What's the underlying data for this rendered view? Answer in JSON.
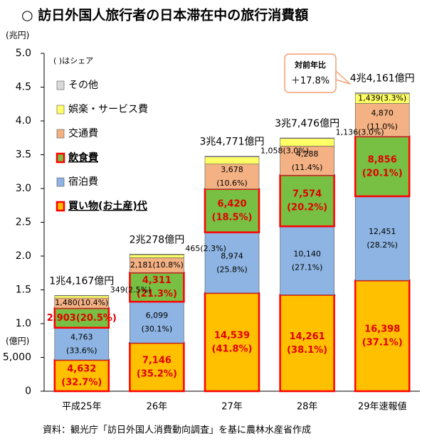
{
  "chart_data": {
    "type": "stacked_bar",
    "title": "○ 訪日外国人旅行者の日本滞在中の旅行消費額",
    "y_unit_top": "(兆円)",
    "y_unit_bottom": "(億円)",
    "legend_title": "( )はシェア",
    "source": "資料：観光庁「訪日外国人消費動向調査」を基に農林水産省作成",
    "annotation": {
      "label": "対前年比",
      "text": "＋17.8%"
    },
    "categories": [
      "平成25年",
      "26年",
      "27年",
      "28年",
      "29年速報値"
    ],
    "ylim": [
      0,
      50000
    ],
    "yticks": [
      0,
      {
        "value": 5000,
        "label": "5,000"
      },
      {
        "value": 10000,
        "label": "1.0"
      },
      {
        "value": 15000,
        "label": "1.5"
      },
      {
        "value": 20000,
        "label": "2.0"
      },
      {
        "value": 25000,
        "label": "2.5"
      },
      {
        "value": 30000,
        "label": "3.0"
      },
      {
        "value": 35000,
        "label": "3.5"
      },
      {
        "value": 40000,
        "label": "4.0"
      },
      {
        "value": 45000,
        "label": "4.5"
      },
      {
        "value": 50000,
        "label": "5.0"
      }
    ],
    "grid": false,
    "series": [
      {
        "name": "買い物(お土産)代",
        "color": "#ffc000",
        "highlight": true,
        "values": [
          4632,
          7146,
          14539,
          14261,
          16398
        ],
        "value_labels": [
          "4,632",
          "7,146",
          "14,539",
          "14,261",
          "16,398"
        ],
        "share_labels": [
          "(32.7%)",
          "(35.2%)",
          "(41.8%)",
          "(38.1%)",
          "(37.1%)"
        ]
      },
      {
        "name": "宿泊費",
        "color": "#8db4e2",
        "highlight": false,
        "values": [
          4763,
          6099,
          8974,
          10140,
          12451
        ],
        "value_labels": [
          "4,763",
          "6,099",
          "8,974",
          "10,140",
          "12,451"
        ],
        "share_labels": [
          "(33.6%)",
          "(30.1%)",
          "(25.8%)",
          "(27.1%)",
          "(28.2%)"
        ]
      },
      {
        "name": "飲食費",
        "color": "#77c043",
        "highlight": true,
        "values": [
          2903,
          4311,
          6420,
          7574,
          8856
        ],
        "value_labels": [
          "2,903",
          "4,311",
          "6,420",
          "7,574",
          "8,856"
        ],
        "share_labels": [
          "(20.5%)",
          "(21.3%)",
          "(18.5%)",
          "(20.2%)",
          "(20.1%)"
        ]
      },
      {
        "name": "交通費",
        "color": "#f4b183",
        "highlight": false,
        "values": [
          1480,
          2181,
          3678,
          4288,
          4870
        ],
        "value_labels": [
          "1,480",
          "2,181",
          "3,678",
          "4,288",
          "4,870"
        ],
        "share_labels": [
          "(10.4%)",
          "(10.8%)",
          "(10.6%)",
          "(11.4%)",
          "(11.0%)"
        ]
      },
      {
        "name": "娯楽・サービス費",
        "color": "#ffff66",
        "highlight": false,
        "values": [
          349,
          465,
          1058,
          1136,
          1439
        ],
        "value_labels": [
          "349",
          "465",
          "1,058",
          "1,136",
          "1,439"
        ],
        "share_labels": [
          "(2.5%)",
          "(2.3%)",
          "(3.0%)",
          "(3.0%)",
          "(3.3%)"
        ]
      },
      {
        "name": "その他",
        "color": "#d9d9d9",
        "highlight": false,
        "values": [
          40,
          76,
          102,
          77,
          147
        ]
      }
    ],
    "totals": {
      "values": [
        14167,
        20278,
        34771,
        37476,
        44161
      ],
      "value_labels": [
        "1兆4,167億円",
        "2兆278億円",
        "3兆4,771億円",
        "3兆7,476億円",
        "4兆4,161億円"
      ]
    }
  }
}
